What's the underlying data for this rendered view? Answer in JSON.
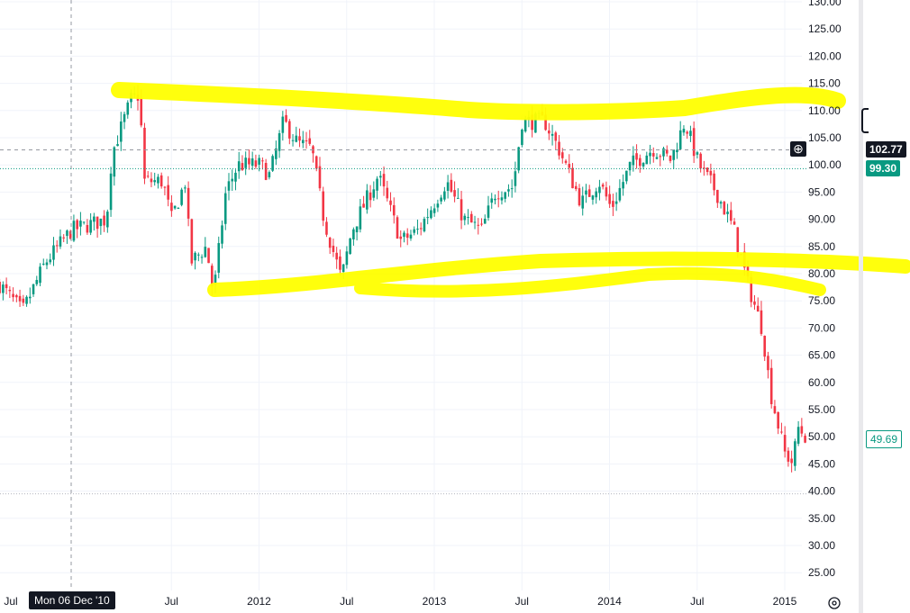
{
  "chart_data": {
    "type": "candlestick",
    "title": "",
    "price_axis": {
      "min": 25,
      "max": 130,
      "step": 5,
      "ticks": [
        "130.00",
        "125.00",
        "120.00",
        "115.00",
        "110.00",
        "105.00",
        "100.00",
        "95.00",
        "90.00",
        "85.00",
        "80.00",
        "75.00",
        "70.00",
        "65.00",
        "60.00",
        "55.00",
        "50.00",
        "45.00",
        "40.00",
        "35.00",
        "30.00",
        "25.00"
      ]
    },
    "time_axis": {
      "ticks": [
        {
          "t": 2010.5,
          "label": "Jul"
        },
        {
          "t": 2011.5,
          "label": "Jul"
        },
        {
          "t": 2012.0,
          "label": "2012"
        },
        {
          "t": 2012.5,
          "label": "Jul"
        },
        {
          "t": 2013.0,
          "label": "2013"
        },
        {
          "t": 2013.5,
          "label": "Jul"
        },
        {
          "t": 2014.0,
          "label": "2014"
        },
        {
          "t": 2014.5,
          "label": "Jul"
        },
        {
          "t": 2015.0,
          "label": "2015"
        }
      ]
    },
    "crosshair": {
      "t": 2010.93,
      "label": "Mon 06 Dec '10",
      "price": 102.77,
      "price_label": "102.77"
    },
    "prev_close": {
      "price": 99.3,
      "label": "99.30"
    },
    "last_price": {
      "price": 49.69,
      "label": "49.69"
    },
    "low_line": 39.5,
    "colors": {
      "up": "#089981",
      "down": "#f23645",
      "highlight": "#ffff00"
    },
    "interval": "weekly",
    "path": [
      [
        2010.52,
        78
      ],
      [
        2010.65,
        73
      ],
      [
        2010.78,
        82
      ],
      [
        2010.93,
        88
      ],
      [
        2011.13,
        90
      ],
      [
        2011.16,
        102
      ],
      [
        2011.27,
        112
      ],
      [
        2011.32,
        113
      ],
      [
        2011.34,
        97
      ],
      [
        2011.45,
        97
      ],
      [
        2011.5,
        90
      ],
      [
        2011.58,
        97
      ],
      [
        2011.61,
        82
      ],
      [
        2011.7,
        85
      ],
      [
        2011.74,
        76
      ],
      [
        2011.81,
        95
      ],
      [
        2011.88,
        100
      ],
      [
        2012.01,
        100
      ],
      [
        2012.06,
        98
      ],
      [
        2012.14,
        108
      ],
      [
        2012.22,
        104
      ],
      [
        2012.3,
        103
      ],
      [
        2012.37,
        90
      ],
      [
        2012.47,
        79
      ],
      [
        2012.53,
        88
      ],
      [
        2012.68,
        98
      ],
      [
        2012.81,
        86
      ],
      [
        2012.91,
        88
      ],
      [
        2013.07,
        97
      ],
      [
        2013.17,
        90
      ],
      [
        2013.27,
        88
      ],
      [
        2013.35,
        95
      ],
      [
        2013.45,
        96
      ],
      [
        2013.5,
        108
      ],
      [
        2013.63,
        108
      ],
      [
        2013.71,
        103
      ],
      [
        2013.84,
        93
      ],
      [
        2013.94,
        97
      ],
      [
        2014.01,
        92
      ],
      [
        2014.12,
        100
      ],
      [
        2014.25,
        103
      ],
      [
        2014.35,
        101
      ],
      [
        2014.43,
        108
      ],
      [
        2014.51,
        100
      ],
      [
        2014.61,
        95
      ],
      [
        2014.71,
        88
      ],
      [
        2014.79,
        78
      ],
      [
        2014.87,
        70
      ],
      [
        2014.92,
        58
      ],
      [
        2015.0,
        47
      ],
      [
        2015.05,
        45
      ],
      [
        2015.07,
        52
      ],
      [
        2015.12,
        50
      ]
    ]
  }
}
